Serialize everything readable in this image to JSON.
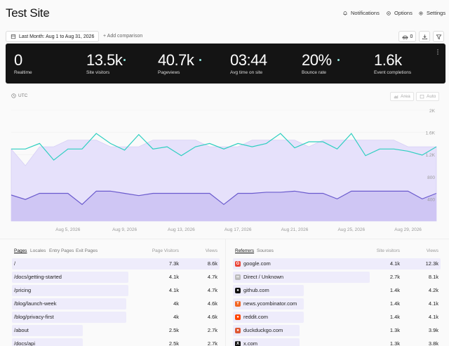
{
  "header": {
    "site_title": "Test Site",
    "notifications": "Notifications",
    "options": "Options",
    "settings": "Settings"
  },
  "toolbar": {
    "date_range": "Last Month: Aug 1 to Aug 31, 2026",
    "add_comparison": "+ Add comparison",
    "segments_count": "0"
  },
  "stats": [
    {
      "value": "0",
      "label": "Realtime",
      "dot": false
    },
    {
      "value": "13.5k",
      "label": "Site visitors",
      "dot": true
    },
    {
      "value": "40.7k",
      "label": "Pageviews",
      "dot": true
    },
    {
      "value": "03:44",
      "label": "Avg time on site",
      "dot": false
    },
    {
      "value": "20%",
      "label": "Bounce rate",
      "dot": true
    },
    {
      "value": "1.6k",
      "label": "Event completions",
      "dot": false
    }
  ],
  "chart_controls": {
    "timezone": "UTC",
    "area": "Area",
    "auto": "Auto"
  },
  "chart_data": {
    "type": "area",
    "x_labels": [
      "Aug 5, 2026",
      "Aug 9, 2026",
      "Aug 13, 2026",
      "Aug 17, 2026",
      "Aug 21, 2026",
      "Aug 25, 2026",
      "Aug 29, 2026"
    ],
    "y_ticks": [
      "2K",
      "1.6K",
      "1.2K",
      "800",
      "400"
    ],
    "ylim": [
      0,
      2000
    ],
    "series": [
      {
        "values": [
          1300,
          1000,
          1340,
          1340,
          1460,
          1460,
          1460,
          1340,
          1340,
          1340,
          1460,
          1460,
          1460,
          1460,
          1340,
          1340,
          1340,
          1460,
          1460,
          1460,
          1460,
          1340,
          1460,
          1460,
          1460,
          1460,
          1460,
          1460,
          1340,
          1340,
          1340
        ]
      },
      {
        "values": [
          1300,
          1300,
          1400,
          1100,
          1300,
          1300,
          1580,
          1400,
          1280,
          1560,
          1300,
          1340,
          1180,
          1340,
          1400,
          1300,
          1400,
          1340,
          1400,
          1580,
          1320,
          1430,
          1430,
          1300,
          1580,
          1180,
          1300,
          1300,
          1260,
          1190,
          1340
        ]
      },
      {
        "values": [
          470,
          390,
          500,
          500,
          500,
          300,
          540,
          540,
          500,
          460,
          500,
          500,
          500,
          500,
          500,
          300,
          500,
          500,
          520,
          520,
          540,
          500,
          500,
          400,
          540,
          540,
          540,
          540,
          540,
          400,
          500
        ]
      }
    ]
  },
  "pages_panel": {
    "tabs": [
      "Pages",
      "Locales",
      "Entry Pages",
      "Exit Pages"
    ],
    "col1": "Page Visitors",
    "col2": "Views",
    "rows": [
      {
        "label": "/",
        "v1": "7.3k",
        "v2": "8.6k",
        "frac": 1.0
      },
      {
        "label": "/docs/getting-started",
        "v1": "4.1k",
        "v2": "4.7k",
        "frac": 0.56
      },
      {
        "label": "/pricing",
        "v1": "4.1k",
        "v2": "4.7k",
        "frac": 0.56
      },
      {
        "label": "/blog/launch-week",
        "v1": "4k",
        "v2": "4.6k",
        "frac": 0.55
      },
      {
        "label": "/blog/privacy-first",
        "v1": "4k",
        "v2": "4.6k",
        "frac": 0.55
      },
      {
        "label": "/about",
        "v1": "2.5k",
        "v2": "2.7k",
        "frac": 0.34
      },
      {
        "label": "/docs/api",
        "v1": "2.5k",
        "v2": "2.7k",
        "frac": 0.34
      }
    ]
  },
  "referrers_panel": {
    "tabs": [
      "Referrers",
      "Sources"
    ],
    "col1": "Site visitors",
    "col2": "Views",
    "rows": [
      {
        "label": "google.com",
        "v1": "4.1k",
        "v2": "12.3k",
        "frac": 1.0,
        "icon": "google-icon",
        "color": "#ea4335",
        "glyph": "G"
      },
      {
        "label": "Direct / Unknown",
        "v1": "2.7k",
        "v2": "8.1k",
        "frac": 0.66,
        "icon": "link-icon",
        "color": "#bbbbbb",
        "glyph": "∞"
      },
      {
        "label": "github.com",
        "v1": "1.4k",
        "v2": "4.2k",
        "frac": 0.34,
        "icon": "github-icon",
        "color": "#111111",
        "glyph": "●"
      },
      {
        "label": "news.ycombinator.com",
        "v1": "1.4k",
        "v2": "4.1k",
        "frac": 0.34,
        "icon": "ycombinator-icon",
        "color": "#f26522",
        "glyph": "Y"
      },
      {
        "label": "reddit.com",
        "v1": "1.4k",
        "v2": "4.1k",
        "frac": 0.34,
        "icon": "reddit-icon",
        "color": "#ff4500",
        "glyph": "●"
      },
      {
        "label": "duckduckgo.com",
        "v1": "1.3k",
        "v2": "3.9k",
        "frac": 0.32,
        "icon": "duckduckgo-icon",
        "color": "#de5833",
        "glyph": "●"
      },
      {
        "label": "x.com",
        "v1": "1.3k",
        "v2": "3.8k",
        "frac": 0.32,
        "icon": "x-icon",
        "color": "#111111",
        "glyph": "X"
      }
    ]
  },
  "colors": {
    "accent_teal": "#2ecfc0",
    "accent_purple": "#6a5acd",
    "area_fill": "#e6e1fb",
    "area_fill_dark": "#cfc6f4"
  }
}
